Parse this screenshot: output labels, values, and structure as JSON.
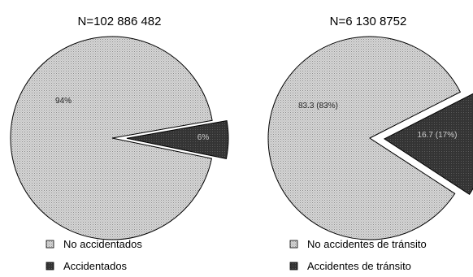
{
  "colors": {
    "light_slice": "#d2d2d2",
    "light_stipple": "#9a9a9a",
    "dark_slice": "#2f2f2f",
    "outline": "#000000"
  },
  "chart_data": [
    {
      "type": "pie",
      "title": "N=102 886 482",
      "slices": [
        {
          "name": "No accidentados",
          "value": 94,
          "label": "94%",
          "exploded": false
        },
        {
          "name": "Accidentados",
          "value": 6,
          "label": "6%",
          "exploded": true
        }
      ],
      "legend": [
        "No accidentados",
        "Accidentados"
      ],
      "legend_position": "bottom"
    },
    {
      "type": "pie",
      "title": "N=6 130 8752",
      "slices": [
        {
          "name": "No accidentes de tránsito",
          "value": 83.3,
          "label": "83.3 (83%)",
          "exploded": false
        },
        {
          "name": "Accidentes de tránsito",
          "value": 16.7,
          "label": "16.7 (17%)",
          "exploded": true
        }
      ],
      "legend": [
        "No accidentes de tránsito",
        "Accidentes de tránsito"
      ],
      "legend_position": "bottom"
    }
  ]
}
